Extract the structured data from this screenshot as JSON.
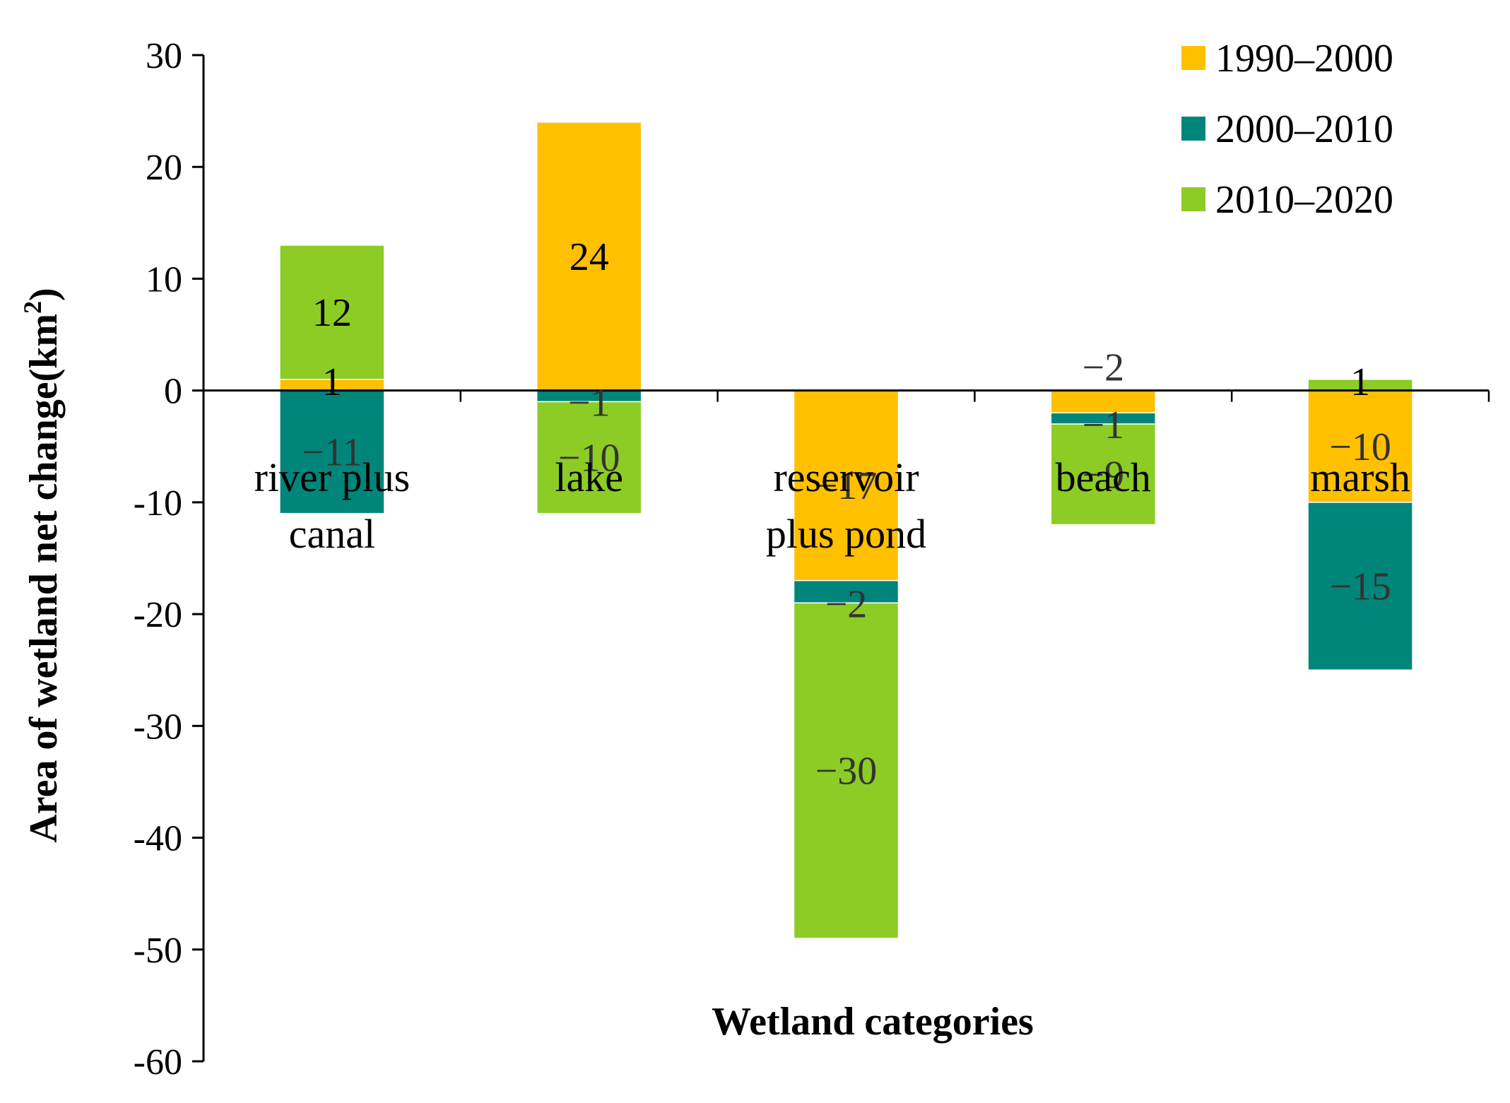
{
  "chart_data": {
    "type": "bar",
    "stacked": true,
    "xlabel": "Wetland categories",
    "ylabel": "Area  of wetland net change(km",
    "ylabel_sup": "2",
    "ylabel_close": ")",
    "ylim": [
      -60,
      30
    ],
    "yticks": [
      30,
      20,
      10,
      0,
      -10,
      -20,
      -30,
      -40,
      -50,
      -60
    ],
    "categories": [
      [
        "river plus",
        "canal"
      ],
      [
        "lake"
      ],
      [
        "reservoir",
        "plus pond"
      ],
      [
        "beach"
      ],
      [
        "marsh"
      ]
    ],
    "series": [
      {
        "name": "1990–2000",
        "color": "#ffc000",
        "values": [
          1,
          24,
          -17,
          -2,
          -10
        ],
        "labels": [
          "1",
          "24",
          "−17",
          "−2",
          "−10"
        ]
      },
      {
        "name": "2000–2010",
        "color": "#00857a",
        "values": [
          -11,
          -1,
          -2,
          -1,
          -15
        ],
        "labels": [
          "−11",
          "−1",
          "−2",
          "−1",
          "−15"
        ]
      },
      {
        "name": "2010–2020",
        "color": "#8ccc24",
        "values": [
          12,
          -10,
          -30,
          -9,
          1
        ],
        "labels": [
          "12",
          "−10",
          "−30",
          "−9",
          "1"
        ]
      }
    ],
    "legend_position": "top-right",
    "grid": false
  }
}
